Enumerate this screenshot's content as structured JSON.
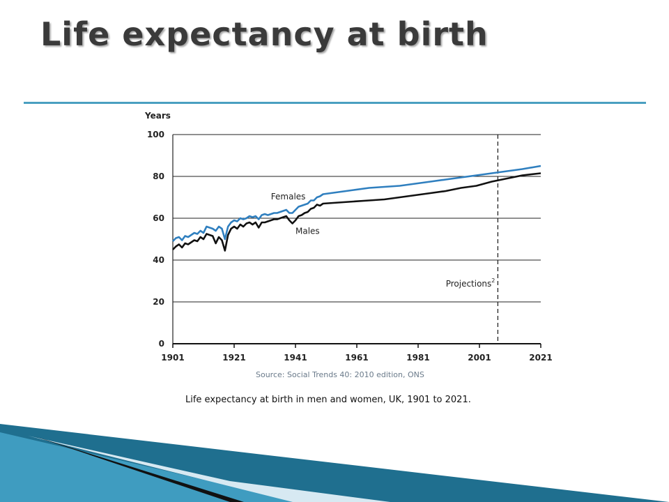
{
  "slide": {
    "title": "Life expectancy at birth",
    "source": "Source: Social Trends 40: 2010 edition, ONS",
    "caption": "Life expectancy at birth in men and women, UK, 1901 to 2021."
  },
  "colors": {
    "rule": "#4a9fc0",
    "females": "#2f7fbf",
    "males": "#111111"
  },
  "chart_data": {
    "type": "line",
    "title": "",
    "xlabel": "",
    "ylabel": "Years",
    "xlim": [
      1901,
      2021
    ],
    "ylim": [
      0,
      100
    ],
    "x_ticks": [
      1901,
      1921,
      1941,
      1961,
      1981,
      2001,
      2021
    ],
    "y_ticks": [
      0,
      20,
      40,
      60,
      80,
      100
    ],
    "grid": "horizontal",
    "annotation": {
      "text": "Projections",
      "superscript": "2",
      "x": 2007
    },
    "series": [
      {
        "name": "Females",
        "x": [
          1901,
          1902,
          1903,
          1904,
          1905,
          1906,
          1907,
          1908,
          1909,
          1910,
          1911,
          1912,
          1913,
          1914,
          1915,
          1916,
          1917,
          1918,
          1919,
          1920,
          1921,
          1922,
          1923,
          1924,
          1925,
          1926,
          1927,
          1928,
          1929,
          1930,
          1931,
          1932,
          1933,
          1934,
          1935,
          1936,
          1937,
          1938,
          1939,
          1940,
          1941,
          1942,
          1943,
          1944,
          1945,
          1946,
          1947,
          1948,
          1949,
          1950,
          1955,
          1960,
          1965,
          1970,
          1975,
          1980,
          1985,
          1990,
          1995,
          2000,
          2005,
          2010,
          2015,
          2021
        ],
        "values": [
          49,
          50.5,
          51,
          49.5,
          51.5,
          51,
          52,
          53,
          52.5,
          54,
          53,
          56,
          55.5,
          55,
          54,
          56,
          55,
          50,
          56,
          58,
          59,
          58.5,
          60,
          59.5,
          60,
          61,
          60.5,
          61,
          59.5,
          61.5,
          62,
          61.5,
          62,
          62.5,
          62.5,
          63,
          63.5,
          64,
          62.5,
          62.5,
          64,
          65.5,
          66,
          66.5,
          67,
          68.5,
          68.5,
          70,
          70.5,
          71.5,
          72.5,
          73.5,
          74.5,
          75,
          75.5,
          76.5,
          77.5,
          78.5,
          79.5,
          80.5,
          81.5,
          82.5,
          83.5,
          85
        ]
      },
      {
        "name": "Males",
        "x": [
          1901,
          1902,
          1903,
          1904,
          1905,
          1906,
          1907,
          1908,
          1909,
          1910,
          1911,
          1912,
          1913,
          1914,
          1915,
          1916,
          1917,
          1918,
          1919,
          1920,
          1921,
          1922,
          1923,
          1924,
          1925,
          1926,
          1927,
          1928,
          1929,
          1930,
          1931,
          1932,
          1933,
          1934,
          1935,
          1936,
          1937,
          1938,
          1939,
          1940,
          1941,
          1942,
          1943,
          1944,
          1945,
          1946,
          1947,
          1948,
          1949,
          1950,
          1955,
          1960,
          1965,
          1970,
          1975,
          1980,
          1985,
          1990,
          1995,
          2000,
          2005,
          2010,
          2015,
          2021
        ],
        "values": [
          45,
          46.5,
          47.5,
          46,
          48,
          47.5,
          48.5,
          49.5,
          49,
          51,
          50,
          52.5,
          52,
          51.5,
          48,
          51,
          49.5,
          44.5,
          52,
          55,
          56,
          55,
          57,
          56,
          57.5,
          58,
          57,
          58,
          55.5,
          58,
          58,
          58.5,
          59,
          59.5,
          59.5,
          60,
          60.5,
          61,
          59,
          57.5,
          59,
          61,
          61.5,
          62.5,
          63,
          64.5,
          65,
          66.5,
          66,
          67,
          67.5,
          68,
          68.5,
          69,
          70,
          71,
          72,
          73,
          74.5,
          75.5,
          77.5,
          79,
          80.5,
          81.5
        ]
      }
    ]
  }
}
